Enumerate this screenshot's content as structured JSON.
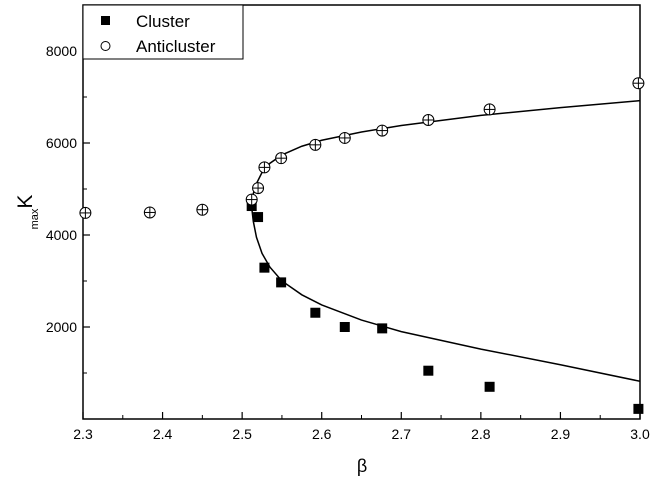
{
  "chart_data": {
    "type": "scatter",
    "title": "",
    "xlabel": "β",
    "ylabel": {
      "subscript": "max",
      "main": "K"
    },
    "xlim": [
      2.3,
      3.0
    ],
    "ylim": [
      0,
      9000
    ],
    "x_ticks": [
      "2.3",
      "2.4",
      "2.5",
      "2.6",
      "2.7",
      "2.8",
      "2.9",
      "3.0"
    ],
    "y_ticks": [
      "2000",
      "4000",
      "6000",
      "8000"
    ],
    "grid": false,
    "legend_position": "top-left",
    "series": [
      {
        "name": "Cluster",
        "marker": "filled-square",
        "color": "#000000",
        "points": [
          {
            "x": 2.512,
            "y": 4630
          },
          {
            "x": 2.52,
            "y": 4390
          },
          {
            "x": 2.528,
            "y": 3290
          },
          {
            "x": 2.549,
            "y": 2970
          },
          {
            "x": 2.592,
            "y": 2310
          },
          {
            "x": 2.629,
            "y": 2000
          },
          {
            "x": 2.676,
            "y": 1970
          },
          {
            "x": 2.734,
            "y": 1050
          },
          {
            "x": 2.811,
            "y": 700
          },
          {
            "x": 2.998,
            "y": 220
          }
        ]
      },
      {
        "name": "Anticluster",
        "marker": "crossed-circle",
        "color": "#000000",
        "points": [
          {
            "x": 2.303,
            "y": 4480
          },
          {
            "x": 2.384,
            "y": 4490
          },
          {
            "x": 2.45,
            "y": 4550
          },
          {
            "x": 2.512,
            "y": 4770
          },
          {
            "x": 2.52,
            "y": 5020
          },
          {
            "x": 2.528,
            "y": 5470
          },
          {
            "x": 2.549,
            "y": 5670
          },
          {
            "x": 2.592,
            "y": 5960
          },
          {
            "x": 2.629,
            "y": 6110
          },
          {
            "x": 2.676,
            "y": 6270
          },
          {
            "x": 2.734,
            "y": 6500
          },
          {
            "x": 2.811,
            "y": 6730
          },
          {
            "x": 2.998,
            "y": 7300
          }
        ]
      },
      {
        "marker": "line",
        "color": "#000000",
        "points": [
          {
            "x": 3.0,
            "y": 6920
          },
          {
            "x": 2.9,
            "y": 6770
          },
          {
            "x": 2.8,
            "y": 6600
          },
          {
            "x": 2.7,
            "y": 6380
          },
          {
            "x": 2.65,
            "y": 6240
          },
          {
            "x": 2.6,
            "y": 6060
          },
          {
            "x": 2.575,
            "y": 5930
          },
          {
            "x": 2.55,
            "y": 5740
          },
          {
            "x": 2.535,
            "y": 5560
          },
          {
            "x": 2.525,
            "y": 5360
          },
          {
            "x": 2.518,
            "y": 5120
          },
          {
            "x": 2.514,
            "y": 4900
          },
          {
            "x": 2.512,
            "y": 4600
          },
          {
            "x": 2.514,
            "y": 4300
          },
          {
            "x": 2.518,
            "y": 3950
          },
          {
            "x": 2.525,
            "y": 3600
          },
          {
            "x": 2.535,
            "y": 3300
          },
          {
            "x": 2.55,
            "y": 3000
          },
          {
            "x": 2.575,
            "y": 2700
          },
          {
            "x": 2.6,
            "y": 2480
          },
          {
            "x": 2.65,
            "y": 2150
          },
          {
            "x": 2.7,
            "y": 1900
          },
          {
            "x": 2.8,
            "y": 1520
          },
          {
            "x": 2.9,
            "y": 1180
          },
          {
            "x": 3.0,
            "y": 820
          }
        ]
      }
    ]
  }
}
